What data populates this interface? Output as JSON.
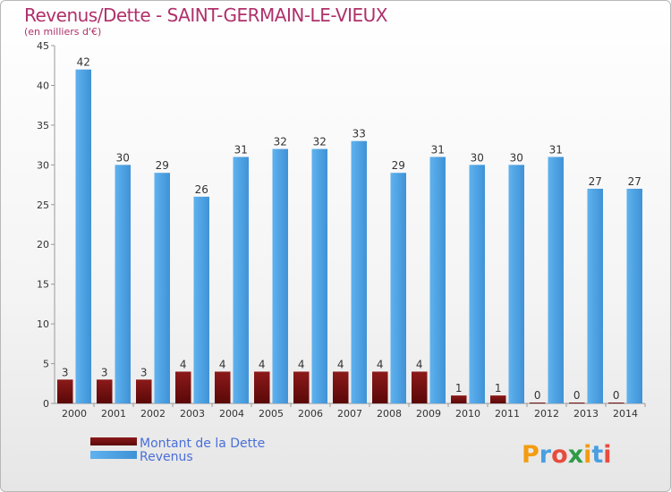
{
  "chart_data": {
    "type": "bar",
    "title": "Revenus/Dette - SAINT-GERMAIN-LE-VIEUX",
    "subtitle": "(en milliers d'€)",
    "xlabel": "",
    "ylabel": "",
    "categories": [
      "2000",
      "2001",
      "2002",
      "2003",
      "2004",
      "2005",
      "2006",
      "2007",
      "2008",
      "2009",
      "2010",
      "2011",
      "2012",
      "2013",
      "2014"
    ],
    "series": [
      {
        "name": "Montant de la Dette",
        "color": "#7a0f0f",
        "values": [
          3,
          3,
          3,
          4,
          4,
          4,
          4,
          4,
          4,
          4,
          1,
          1,
          0,
          0,
          0
        ]
      },
      {
        "name": "Revenus",
        "color": "#4fa3e3",
        "values": [
          42,
          30,
          29,
          26,
          31,
          32,
          32,
          33,
          29,
          31,
          30,
          30,
          31,
          27,
          27
        ]
      }
    ],
    "ylim": [
      0,
      45
    ],
    "yticks": [
      0,
      5,
      10,
      15,
      20,
      25,
      30,
      35,
      40,
      45
    ],
    "grid": false,
    "legend_position": "bottom-left"
  },
  "logo_text": "Proxiti"
}
